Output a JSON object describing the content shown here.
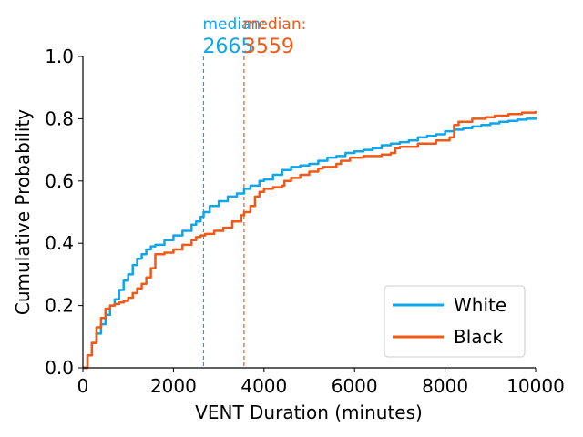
{
  "chart_data": {
    "type": "line",
    "title": "",
    "xlabel": "VENT Duration (minutes)",
    "ylabel": "Cumulative Probability",
    "xlim": [
      0,
      10000
    ],
    "ylim": [
      0,
      1.0
    ],
    "x_ticks": [
      0,
      2000,
      4000,
      6000,
      8000,
      10000
    ],
    "y_ticks": [
      0.0,
      0.2,
      0.4,
      0.6,
      0.8,
      1.0
    ],
    "x_tick_labels": [
      "0",
      "2000",
      "4000",
      "6000",
      "8000",
      "10000"
    ],
    "y_tick_labels": [
      "0.0",
      "0.2",
      "0.4",
      "0.6",
      "0.8",
      "1.0"
    ],
    "grid": false,
    "legend_position": "bottom-right",
    "series": [
      {
        "name": "White",
        "color": "#0ea5e9",
        "x": [
          0,
          100,
          200,
          300,
          400,
          500,
          600,
          700,
          800,
          900,
          1000,
          1100,
          1200,
          1300,
          1400,
          1500,
          1600,
          1800,
          2000,
          2200,
          2400,
          2500,
          2600,
          2665,
          2800,
          3000,
          3200,
          3400,
          3559,
          3700,
          3900,
          4000,
          4200,
          4400,
          4600,
          4800,
          5000,
          5200,
          5400,
          5600,
          5800,
          6000,
          6200,
          6400,
          6600,
          6800,
          7000,
          7200,
          7400,
          7600,
          7800,
          8000,
          8200,
          8400,
          8600,
          8800,
          9000,
          9200,
          9400,
          9600,
          9800,
          10000
        ],
        "y": [
          0.0,
          0.04,
          0.08,
          0.11,
          0.14,
          0.17,
          0.2,
          0.22,
          0.25,
          0.28,
          0.3,
          0.33,
          0.35,
          0.365,
          0.38,
          0.39,
          0.395,
          0.41,
          0.425,
          0.44,
          0.46,
          0.47,
          0.485,
          0.5,
          0.52,
          0.535,
          0.55,
          0.56,
          0.575,
          0.585,
          0.6,
          0.605,
          0.62,
          0.635,
          0.645,
          0.65,
          0.655,
          0.665,
          0.675,
          0.68,
          0.69,
          0.695,
          0.7,
          0.705,
          0.715,
          0.72,
          0.725,
          0.73,
          0.74,
          0.745,
          0.75,
          0.76,
          0.765,
          0.77,
          0.775,
          0.78,
          0.785,
          0.79,
          0.793,
          0.797,
          0.8,
          0.805
        ]
      },
      {
        "name": "Black",
        "color": "#f05a16",
        "x": [
          0,
          100,
          200,
          300,
          400,
          500,
          600,
          700,
          800,
          900,
          1000,
          1100,
          1200,
          1300,
          1400,
          1500,
          1600,
          1800,
          2000,
          2200,
          2400,
          2500,
          2600,
          2700,
          2900,
          3100,
          3300,
          3500,
          3559,
          3700,
          3800,
          3900,
          4000,
          4200,
          4400,
          4450,
          4600,
          4800,
          5000,
          5200,
          5300,
          5600,
          5700,
          5900,
          6200,
          6600,
          6800,
          6900,
          7000,
          7400,
          7800,
          8100,
          8200,
          8300,
          8600,
          8900,
          9100,
          9400,
          9700,
          10000
        ],
        "y": [
          0.0,
          0.04,
          0.08,
          0.13,
          0.16,
          0.19,
          0.2,
          0.205,
          0.21,
          0.215,
          0.225,
          0.24,
          0.255,
          0.27,
          0.29,
          0.32,
          0.365,
          0.37,
          0.38,
          0.395,
          0.41,
          0.42,
          0.425,
          0.43,
          0.44,
          0.45,
          0.47,
          0.49,
          0.5,
          0.52,
          0.55,
          0.565,
          0.575,
          0.58,
          0.585,
          0.6,
          0.61,
          0.62,
          0.63,
          0.64,
          0.645,
          0.655,
          0.665,
          0.675,
          0.68,
          0.685,
          0.69,
          0.705,
          0.71,
          0.72,
          0.73,
          0.74,
          0.78,
          0.79,
          0.8,
          0.805,
          0.81,
          0.815,
          0.82,
          0.825
        ]
      }
    ],
    "annotations": [
      {
        "label": "median:",
        "value": "2665",
        "x": 2665,
        "color": "#0ea5e9"
      },
      {
        "label": "median:",
        "value": "3559",
        "x": 3559,
        "color": "#f05a16"
      }
    ]
  }
}
